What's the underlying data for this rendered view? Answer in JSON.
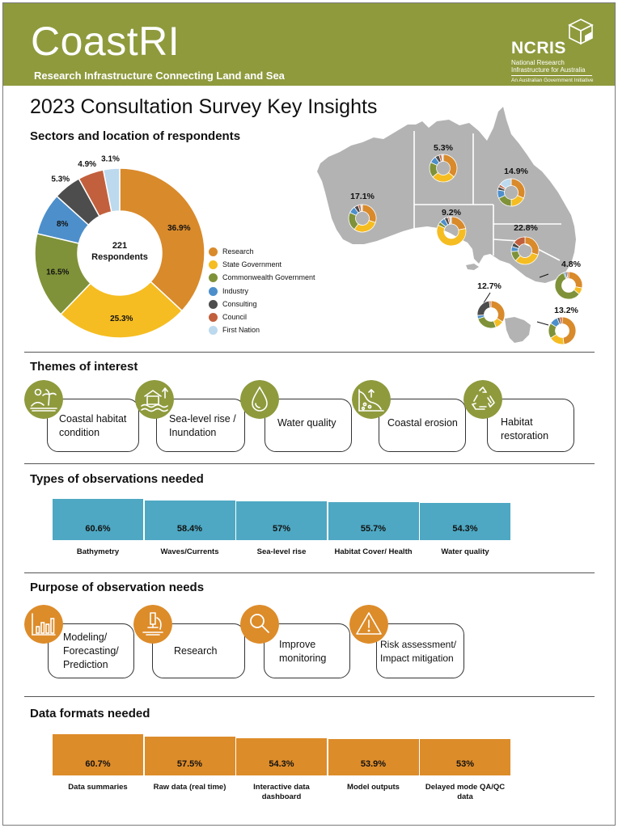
{
  "header": {
    "brand": "CoastRI",
    "tagline": "Research Infrastructure Connecting Land and Sea",
    "logo_word": "NCRIS",
    "logo_sub": "National Research Infrastructure for Australia",
    "logo_initiative": "An Australian Government Initiative"
  },
  "title": "2023 Consultation Survey Key Insights",
  "sections": {
    "sectors": "Sectors and location of respondents",
    "themes": "Themes of interest",
    "observations": "Types of observations needed",
    "purpose": "Purpose of observation needs",
    "formats": "Data formats needed"
  },
  "colors": {
    "header": "#8f9a3d",
    "research": "#d98a2b",
    "state_government": "#f5bd22",
    "commonwealth_government": "#7f9239",
    "industry": "#4d8fcb",
    "consulting": "#4d4d4d",
    "council": "#c2603d",
    "first_nation": "#bcd9ee",
    "obs_bar": "#4ea8c3",
    "format_bar": "#dd8c2a",
    "theme_icon": "#8f9a3d",
    "purpose_icon": "#dd8c2a",
    "map": "#b3b3b3"
  },
  "chart_data": [
    {
      "type": "pie",
      "center_value": "221",
      "center_label": "Respondents",
      "labels": [
        "Research",
        "State Government",
        "Commonwealth Government",
        "Industry",
        "Consulting",
        "Council",
        "First Nation"
      ],
      "values": [
        36.9,
        25.3,
        16.5,
        8,
        5.3,
        4.9,
        3.1
      ],
      "value_labels": [
        "36.9%",
        "25.3%",
        "16.5%",
        "8%",
        "5.3%",
        "4.9%",
        "3.1%"
      ],
      "legend_position": "right"
    },
    {
      "type": "pie",
      "map_regions": [
        {
          "value": 17.1,
          "label": "17.1%"
        },
        {
          "value": 5.3,
          "label": "5.3%"
        },
        {
          "value": 14.9,
          "label": "14.9%"
        },
        {
          "value": 9.2,
          "label": "9.2%"
        },
        {
          "value": 22.8,
          "label": "22.8%"
        },
        {
          "value": 4.8,
          "label": "4.8%"
        },
        {
          "value": 12.7,
          "label": "12.7%"
        },
        {
          "value": 13.2,
          "label": "13.2%"
        }
      ]
    },
    {
      "type": "bar",
      "categories": [
        "Bathymetry",
        "Waves/Currents",
        "Sea-level rise",
        "Habitat Cover/ Health",
        "Water quality"
      ],
      "values": [
        60.6,
        58.4,
        57,
        55.7,
        54.3
      ],
      "value_labels": [
        "60.6%",
        "58.4%",
        "57%",
        "55.7%",
        "54.3%"
      ]
    },
    {
      "type": "bar",
      "categories": [
        "Data summaries",
        "Raw data (real time)",
        "Interactive data dashboard",
        "Model outputs",
        "Delayed mode QA/QC data"
      ],
      "values": [
        60.7,
        57.5,
        54.3,
        53.9,
        53
      ],
      "value_labels": [
        "60.7%",
        "57.5%",
        "54.3%",
        "53.9%",
        "53%"
      ]
    }
  ],
  "themes": [
    {
      "label": "Coastal habitat condition",
      "icon": "coastal-habitat-icon"
    },
    {
      "label": "Sea-level rise / Inundation",
      "icon": "sea-level-icon"
    },
    {
      "label": "Water quality",
      "icon": "water-drop-icon"
    },
    {
      "label": "Coastal erosion",
      "icon": "erosion-icon"
    },
    {
      "label": "Habitat restoration",
      "icon": "recycle-icon"
    }
  ],
  "purposes": [
    {
      "label": "Modeling/ Forecasting/ Prediction",
      "icon": "bar-chart-icon"
    },
    {
      "label": "Research",
      "icon": "microscope-icon"
    },
    {
      "label": "Improve monitoring",
      "icon": "magnifier-icon"
    },
    {
      "label": "Risk assessment/ Impact mitigation",
      "icon": "warning-icon"
    }
  ]
}
